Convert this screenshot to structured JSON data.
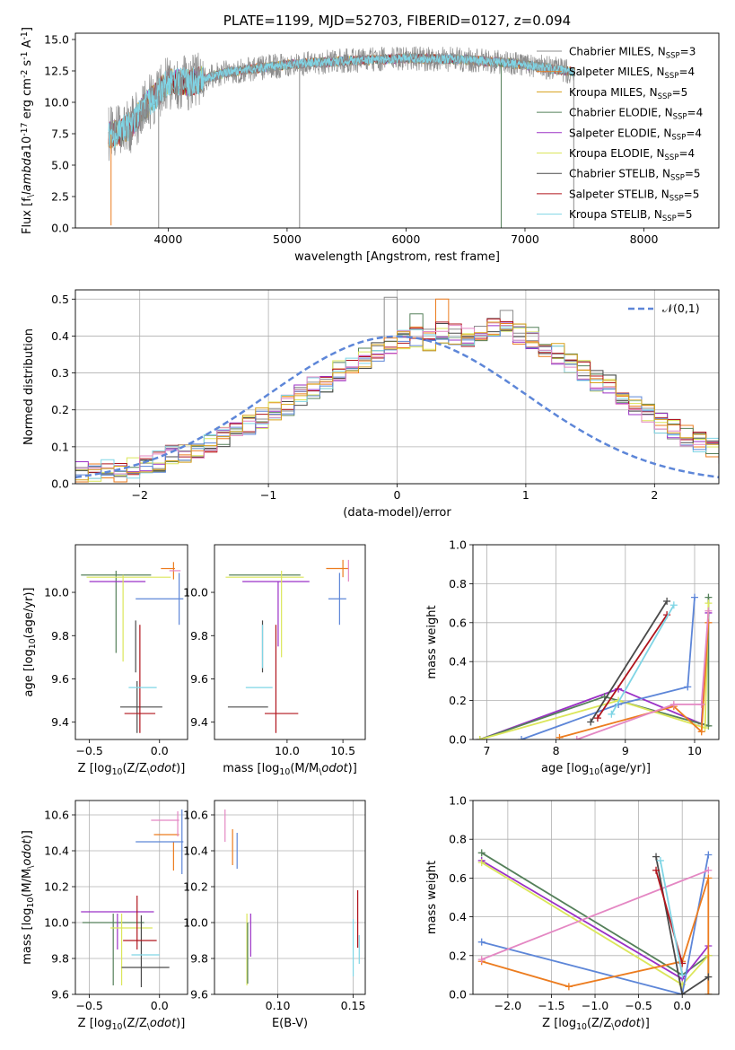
{
  "colors": {
    "chabrier_miles": "#8c8c8c",
    "salpeter_miles": "#ec7c1f",
    "kroupa_miles": "#d7a01a",
    "chabrier_elodie": "#55805a",
    "salpeter_elodie": "#9b30c6",
    "kroupa_elodie": "#dbe65a",
    "chabrier_stelib": "#4a4a4a",
    "salpeter_stelib": "#b0141c",
    "kroupa_stelib": "#7fd5e5",
    "blue": "#5d86d8",
    "pink": "#e487c3"
  },
  "chart_data": [
    {
      "type": "line",
      "title": "PLATE=1199, MJD=52703, FIBERID=0127, z=0.094",
      "xlabel": "wavelength [Angstrom, rest frame]",
      "ylabel": "Flux [f$_\\lambda$10$^{-17}$ erg cm$^{-2}$ s$^{-1}$ A$^{-1}$]",
      "xlim": [
        3220,
        8630
      ],
      "ylim": [
        0,
        15.5
      ],
      "xticks": [
        4000,
        5000,
        6000,
        7000,
        8000
      ],
      "yticks": [
        0.0,
        2.5,
        5.0,
        7.5,
        10.0,
        12.5,
        15.0
      ],
      "legend_position": "top-right",
      "legend": [
        {
          "label": "Chabrier MILES, N",
          "sub": "SSP",
          "eq": "=3",
          "color": "#8c8c8c"
        },
        {
          "label": "Salpeter MILES, N",
          "sub": "SSP",
          "eq": "=4",
          "color": "#ec7c1f"
        },
        {
          "label": "Kroupa MILES, N",
          "sub": "SSP",
          "eq": "=5",
          "color": "#d7a01a"
        },
        {
          "label": "Chabrier ELODIE, N",
          "sub": "SSP",
          "eq": "=4",
          "color": "#55805a"
        },
        {
          "label": "Salpeter ELODIE, N",
          "sub": "SSP",
          "eq": "=4",
          "color": "#9b30c6"
        },
        {
          "label": "Kroupa ELODIE, N",
          "sub": "SSP",
          "eq": "=4",
          "color": "#dbe65a"
        },
        {
          "label": "Chabrier STELIB, N",
          "sub": "SSP",
          "eq": "=5",
          "color": "#4a4a4a"
        },
        {
          "label": "Salpeter STELIB, N",
          "sub": "SSP",
          "eq": "=5",
          "color": "#b0141c"
        },
        {
          "label": "Kroupa STELIB, N",
          "sub": "SSP",
          "eq": "=5",
          "color": "#7fd5e5"
        }
      ],
      "data_wavelength_range": [
        3500,
        7420
      ],
      "continuum": {
        "x": [
          3500,
          3600,
          3700,
          3800,
          3900,
          4000,
          4200,
          4500,
          5000,
          5500,
          6000,
          6500,
          7000,
          7420
        ],
        "y": [
          7.4,
          7.6,
          8.3,
          9.6,
          10.6,
          11.6,
          11.6,
          12.4,
          13.0,
          13.3,
          13.5,
          13.4,
          13.0,
          12.4
        ]
      },
      "dropouts": [
        {
          "x": 3520,
          "y": 0.2
        },
        {
          "x": 3920,
          "y": 0.0
        },
        {
          "x": 5105,
          "y": 0.0
        },
        {
          "x": 6800,
          "y": 0.0
        },
        {
          "x": 7410,
          "y": 0.0
        }
      ]
    },
    {
      "type": "histogram",
      "xlabel": "(data-model)/error",
      "ylabel": "Normed distribution",
      "xlim": [
        -2.5,
        2.5
      ],
      "ylim": [
        0,
        0.525
      ],
      "xticks": [
        -2,
        -1,
        0,
        1,
        2
      ],
      "yticks": [
        0.0,
        0.1,
        0.2,
        0.3,
        0.4,
        0.5
      ],
      "grid": true,
      "legend_position": "top-right",
      "legend": [
        {
          "label": "$\\mathcal{N}(0,1)$",
          "style": "dashed",
          "color": "#5d86d8"
        }
      ],
      "bin_width": 0.1,
      "bin_start": -2.5,
      "envelope": [
        0.03,
        0.03,
        0.04,
        0.03,
        0.045,
        0.05,
        0.06,
        0.075,
        0.085,
        0.095,
        0.105,
        0.125,
        0.14,
        0.16,
        0.175,
        0.2,
        0.21,
        0.24,
        0.26,
        0.275,
        0.305,
        0.325,
        0.34,
        0.36,
        0.375,
        0.39,
        0.4,
        0.39,
        0.41,
        0.405,
        0.4,
        0.4,
        0.42,
        0.44,
        0.405,
        0.395,
        0.37,
        0.35,
        0.33,
        0.305,
        0.28,
        0.265,
        0.24,
        0.215,
        0.19,
        0.165,
        0.15,
        0.13,
        0.11,
        0.095,
        0.08,
        0.065,
        0.06,
        0.045,
        0.04,
        0.03,
        0.03,
        0.025,
        0.025
      ],
      "peaks": [
        {
          "x": -0.05,
          "y": 0.505
        },
        {
          "x": 0.35,
          "y": 0.5
        },
        {
          "x": 0.15,
          "y": 0.46
        }
      ]
    },
    {
      "type": "errorbar",
      "xlabel": "Z [log$_{10}$(Z/Z$_\\odot$)]",
      "ylabel": "age  [log$_{10}$(age/yr)]",
      "xlim": [
        -0.6,
        0.2
      ],
      "ylim": [
        9.32,
        10.22
      ],
      "xticks": [
        -0.5,
        0.0
      ],
      "yticks": [
        9.4,
        9.6,
        9.8,
        10.0
      ],
      "points": [
        {
          "color": "#55805a",
          "x": -0.31,
          "xerr": 0.25,
          "y": 10.08,
          "yerr": 0.0
        },
        {
          "color": "#55805a",
          "x": -0.31,
          "xerr": 0.0,
          "y": 9.91,
          "yerr": 0.19
        },
        {
          "color": "#9b30c6",
          "x": -0.3,
          "xerr": 0.2,
          "y": 10.05,
          "yerr": 0.0
        },
        {
          "color": "#dbe65a",
          "x": -0.26,
          "xerr": 0.0,
          "y": 9.88,
          "yerr": 0.2
        },
        {
          "color": "#dbe65a",
          "x": -0.22,
          "xerr": 0.3,
          "y": 10.07,
          "yerr": 0.0
        },
        {
          "color": "#4a4a4a",
          "x": -0.17,
          "xerr": 0.0,
          "y": 9.75,
          "yerr": 0.12
        },
        {
          "color": "#4a4a4a",
          "x": -0.13,
          "xerr": 0.15,
          "y": 9.47,
          "yerr": 0.0
        },
        {
          "color": "#4a4a4a",
          "x": -0.16,
          "xerr": 0.0,
          "y": 9.47,
          "yerr": 0.12
        },
        {
          "color": "#b0141c",
          "x": -0.14,
          "xerr": 0.0,
          "y": 9.6,
          "yerr": 0.25
        },
        {
          "color": "#b0141c",
          "x": -0.14,
          "xerr": 0.11,
          "y": 9.44,
          "yerr": 0.0
        },
        {
          "color": "#7fd5e5",
          "x": -0.12,
          "xerr": 0.1,
          "y": 9.56,
          "yerr": 0.0
        },
        {
          "color": "#ec7c1f",
          "x": 0.06,
          "xerr": 0.05,
          "y": 10.11,
          "yerr": 0.0
        },
        {
          "color": "#ec7c1f",
          "x": 0.1,
          "xerr": 0.0,
          "y": 10.1,
          "yerr": 0.04
        },
        {
          "color": "#e487c3",
          "x": 0.11,
          "xerr": 0.04,
          "y": 10.1,
          "yerr": 0.0
        },
        {
          "color": "#5d86d8",
          "x": 0.0,
          "xerr": 0.17,
          "y": 9.97,
          "yerr": 0.0
        },
        {
          "color": "#5d86d8",
          "x": 0.14,
          "xerr": 0.0,
          "y": 9.97,
          "yerr": 0.12
        }
      ]
    },
    {
      "type": "errorbar",
      "xlabel": "mass [log$_{10}$(M/M$_\\odot$)]",
      "ylabel": "",
      "xlim": [
        9.35,
        10.7
      ],
      "ylim": [
        9.32,
        10.22
      ],
      "xticks": [
        10.0,
        10.5
      ],
      "yticks": [
        9.4,
        9.6,
        9.8,
        10.0
      ],
      "points": [
        {
          "color": "#55805a",
          "x": 9.8,
          "xerr": 0.32,
          "y": 10.08,
          "yerr": 0.0
        },
        {
          "color": "#9b30c6",
          "x": 9.9,
          "xerr": 0.3,
          "y": 10.05,
          "yerr": 0.0
        },
        {
          "color": "#9b30c6",
          "x": 9.92,
          "xerr": 0.0,
          "y": 9.9,
          "yerr": 0.15
        },
        {
          "color": "#dbe65a",
          "x": 9.95,
          "xerr": 0.0,
          "y": 9.9,
          "yerr": 0.2
        },
        {
          "color": "#dbe65a",
          "x": 9.8,
          "xerr": 0.35,
          "y": 10.07,
          "yerr": 0.0
        },
        {
          "color": "#4a4a4a",
          "x": 9.78,
          "xerr": 0.0,
          "y": 9.75,
          "yerr": 0.12
        },
        {
          "color": "#4a4a4a",
          "x": 9.65,
          "xerr": 0.18,
          "y": 9.47,
          "yerr": 0.0
        },
        {
          "color": "#7fd5e5",
          "x": 9.78,
          "xerr": 0.0,
          "y": 9.75,
          "yerr": 0.1
        },
        {
          "color": "#7fd5e5",
          "x": 9.75,
          "xerr": 0.12,
          "y": 9.56,
          "yerr": 0.0
        },
        {
          "color": "#b0141c",
          "x": 9.9,
          "xerr": 0.0,
          "y": 9.6,
          "yerr": 0.25
        },
        {
          "color": "#b0141c",
          "x": 9.95,
          "xerr": 0.15,
          "y": 9.44,
          "yerr": 0.0
        },
        {
          "color": "#ec7c1f",
          "x": 10.45,
          "xerr": 0.1,
          "y": 10.11,
          "yerr": 0.0
        },
        {
          "color": "#ec7c1f",
          "x": 10.5,
          "xerr": 0.0,
          "y": 10.11,
          "yerr": 0.04
        },
        {
          "color": "#e487c3",
          "x": 10.55,
          "xerr": 0.0,
          "y": 10.1,
          "yerr": 0.05
        },
        {
          "color": "#5d86d8",
          "x": 10.45,
          "xerr": 0.08,
          "y": 9.97,
          "yerr": 0.0
        },
        {
          "color": "#5d86d8",
          "x": 10.47,
          "xerr": 0.0,
          "y": 9.97,
          "yerr": 0.12
        }
      ]
    },
    {
      "type": "line",
      "xlabel": "age  [log$_{10}$(age/yr)]",
      "ylabel": "mass weight",
      "xlim": [
        6.8,
        10.35
      ],
      "ylim": [
        0,
        1
      ],
      "xticks": [
        7,
        8,
        9,
        10
      ],
      "yticks": [
        0.0,
        0.2,
        0.4,
        0.6,
        0.8,
        1.0
      ],
      "grid": true,
      "series": [
        {
          "color": "#9b30c6",
          "x": [
            6.9,
            8.9,
            10.1,
            10.2
          ],
          "y": [
            0.0,
            0.26,
            0.08,
            0.65
          ]
        },
        {
          "color": "#55805a",
          "x": [
            6.9,
            8.7,
            10.2,
            10.2
          ],
          "y": [
            0.0,
            0.22,
            0.07,
            0.73
          ]
        },
        {
          "color": "#dbe65a",
          "x": [
            6.9,
            8.9,
            10.15,
            10.2
          ],
          "y": [
            0.0,
            0.2,
            0.06,
            0.7
          ]
        },
        {
          "color": "#5d86d8",
          "x": [
            7.5,
            8.9,
            9.9,
            10.0
          ],
          "y": [
            0.0,
            0.18,
            0.27,
            0.73
          ]
        },
        {
          "color": "#ec7c1f",
          "x": [
            8.05,
            9.7,
            10.1,
            10.2
          ],
          "y": [
            0.01,
            0.17,
            0.04,
            0.6
          ]
        },
        {
          "color": "#e487c3",
          "x": [
            8.3,
            9.7,
            10.1,
            10.2
          ],
          "y": [
            0.0,
            0.18,
            0.18,
            0.66
          ]
        },
        {
          "color": "#4a4a4a",
          "x": [
            8.5,
            9.6
          ],
          "y": [
            0.09,
            0.71
          ]
        },
        {
          "color": "#b0141c",
          "x": [
            8.6,
            9.6
          ],
          "y": [
            0.11,
            0.64
          ]
        },
        {
          "color": "#7fd5e5",
          "x": [
            8.8,
            9.7
          ],
          "y": [
            0.13,
            0.69
          ]
        }
      ]
    },
    {
      "type": "errorbar",
      "xlabel": "Z [log$_{10}$(Z/Z$_\\odot$)]",
      "ylabel": "mass [log$_{10}$(M/M$_\\odot$)]",
      "xlim": [
        -0.6,
        0.2
      ],
      "ylim": [
        9.6,
        10.68
      ],
      "xticks": [
        -0.5,
        0.0
      ],
      "yticks": [
        9.6,
        9.8,
        10.0,
        10.2,
        10.4,
        10.6
      ],
      "grid": true,
      "points": [
        {
          "color": "#55805a",
          "x": -0.33,
          "xerr": 0.22,
          "y": 10.0,
          "yerr": 0.0
        },
        {
          "color": "#55805a",
          "x": -0.33,
          "xerr": 0.0,
          "y": 9.85,
          "yerr": 0.2
        },
        {
          "color": "#9b30c6",
          "x": -0.3,
          "xerr": 0.26,
          "y": 10.06,
          "yerr": 0.0
        },
        {
          "color": "#9b30c6",
          "x": -0.3,
          "xerr": 0.0,
          "y": 9.95,
          "yerr": 0.1
        },
        {
          "color": "#dbe65a",
          "x": -0.27,
          "xerr": 0.0,
          "y": 9.85,
          "yerr": 0.2
        },
        {
          "color": "#dbe65a",
          "x": -0.2,
          "xerr": 0.15,
          "y": 9.97,
          "yerr": 0.0
        },
        {
          "color": "#4a4a4a",
          "x": -0.13,
          "xerr": 0.0,
          "y": 9.84,
          "yerr": 0.2
        },
        {
          "color": "#4a4a4a",
          "x": -0.1,
          "xerr": 0.17,
          "y": 9.75,
          "yerr": 0.0
        },
        {
          "color": "#b0141c",
          "x": -0.16,
          "xerr": 0.0,
          "y": 10.0,
          "yerr": 0.15
        },
        {
          "color": "#b0141c",
          "x": -0.14,
          "xerr": 0.12,
          "y": 9.9,
          "yerr": 0.0
        },
        {
          "color": "#7fd5e5",
          "x": -0.1,
          "xerr": 0.1,
          "y": 9.82,
          "yerr": 0.0
        },
        {
          "color": "#ec7c1f",
          "x": 0.1,
          "xerr": 0.0,
          "y": 10.37,
          "yerr": 0.08
        },
        {
          "color": "#ec7c1f",
          "x": 0.05,
          "xerr": 0.09,
          "y": 10.49,
          "yerr": 0.0
        },
        {
          "color": "#e487c3",
          "x": 0.13,
          "xerr": 0.0,
          "y": 10.55,
          "yerr": 0.07
        },
        {
          "color": "#e487c3",
          "x": 0.04,
          "xerr": 0.1,
          "y": 10.57,
          "yerr": 0.0
        },
        {
          "color": "#5d86d8",
          "x": 0.0,
          "xerr": 0.17,
          "y": 10.45,
          "yerr": 0.0
        },
        {
          "color": "#5d86d8",
          "x": 0.16,
          "xerr": 0.0,
          "y": 10.45,
          "yerr": 0.18
        }
      ]
    },
    {
      "type": "errorbar",
      "xlabel": "E(B-V)",
      "ylabel": "",
      "xlim": [
        0.058,
        0.158
      ],
      "ylim": [
        9.6,
        10.68
      ],
      "xticks": [
        0.1,
        0.15
      ],
      "yticks": [
        9.6,
        9.8,
        10.0,
        10.2,
        10.4,
        10.6
      ],
      "grid": true,
      "points": [
        {
          "color": "#e487c3",
          "x": 0.065,
          "xerr": 0.0,
          "y": 10.54,
          "yerr": 0.09
        },
        {
          "color": "#ec7c1f",
          "x": 0.07,
          "xerr": 0.0,
          "y": 10.42,
          "yerr": 0.1
        },
        {
          "color": "#5d86d8",
          "x": 0.073,
          "xerr": 0.0,
          "y": 10.4,
          "yerr": 0.1
        },
        {
          "color": "#dbe65a",
          "x": 0.0795,
          "xerr": 0.0,
          "y": 9.85,
          "yerr": 0.2
        },
        {
          "color": "#55805a",
          "x": 0.08,
          "xerr": 0.0,
          "y": 9.83,
          "yerr": 0.17
        },
        {
          "color": "#9b30c6",
          "x": 0.082,
          "xerr": 0.0,
          "y": 9.93,
          "yerr": 0.12
        },
        {
          "color": "#7fd5e5",
          "x": 0.15,
          "xerr": 0.0,
          "y": 9.86,
          "yerr": 0.16
        },
        {
          "color": "#b0141c",
          "x": 0.153,
          "xerr": 0.0,
          "y": 10.02,
          "yerr": 0.16
        },
        {
          "color": "#7fd5e5",
          "x": 0.154,
          "xerr": 0.0,
          "y": 9.85,
          "yerr": 0.08
        }
      ]
    },
    {
      "type": "line",
      "xlabel": "Z [log$_{10}$(Z/Z$_\\odot$)]",
      "ylabel": "mass weight",
      "xlim": [
        -2.4,
        0.42
      ],
      "ylim": [
        0,
        1
      ],
      "xticks": [
        -2.0,
        -1.5,
        -1.0,
        -0.5,
        0.0
      ],
      "yticks": [
        0.0,
        0.2,
        0.4,
        0.6,
        0.8,
        1.0
      ],
      "grid": true,
      "series": [
        {
          "color": "#55805a",
          "x": [
            -2.3,
            0.0,
            0.3,
            0.3
          ],
          "y": [
            0.73,
            0.1,
            0.2,
            0.0
          ]
        },
        {
          "color": "#9b30c6",
          "x": [
            -2.3,
            0.0,
            0.3
          ],
          "y": [
            0.69,
            0.08,
            0.25
          ]
        },
        {
          "color": "#dbe65a",
          "x": [
            -2.3,
            0.0,
            0.3
          ],
          "y": [
            0.68,
            0.05,
            0.2
          ]
        },
        {
          "color": "#5d86d8",
          "x": [
            -2.3,
            0.0,
            0.3
          ],
          "y": [
            0.27,
            0.0,
            0.72
          ]
        },
        {
          "color": "#ec7c1f",
          "x": [
            -2.3,
            -1.3,
            0.0,
            0.3,
            0.3
          ],
          "y": [
            0.17,
            0.04,
            0.17,
            0.6,
            0.0
          ]
        },
        {
          "color": "#e487c3",
          "x": [
            -2.3,
            0.3
          ],
          "y": [
            0.18,
            0.64
          ]
        },
        {
          "color": "#4a4a4a",
          "x": [
            -0.3,
            0.0,
            0.3
          ],
          "y": [
            0.71,
            0.0,
            0.09
          ]
        },
        {
          "color": "#b0141c",
          "x": [
            -0.3,
            0.0
          ],
          "y": [
            0.64,
            0.16
          ]
        },
        {
          "color": "#7fd5e5",
          "x": [
            -0.25,
            0.0
          ],
          "y": [
            0.69,
            0.1
          ]
        }
      ]
    }
  ]
}
